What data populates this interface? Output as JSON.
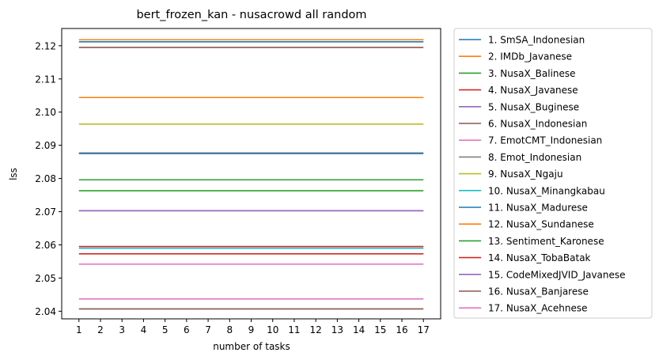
{
  "chart_data": {
    "type": "line",
    "title": "bert_frozen_kan - nusacrowd all random",
    "xlabel": "number of tasks",
    "ylabel": "lss",
    "x": [
      1,
      2,
      3,
      4,
      5,
      6,
      7,
      8,
      9,
      10,
      11,
      12,
      13,
      14,
      15,
      16,
      17
    ],
    "xlim": [
      0.2,
      17.8
    ],
    "ylim": [
      2.0377,
      2.1252
    ],
    "yticks": [
      2.04,
      2.05,
      2.06,
      2.07,
      2.08,
      2.09,
      2.1,
      2.11,
      2.12
    ],
    "ytick_labels": [
      "2.04",
      "2.05",
      "2.06",
      "2.07",
      "2.08",
      "2.09",
      "2.10",
      "2.11",
      "2.12"
    ],
    "xtick_labels": [
      "1",
      "2",
      "3",
      "4",
      "5",
      "6",
      "7",
      "8",
      "9",
      "10",
      "11",
      "12",
      "13",
      "14",
      "15",
      "16",
      "17"
    ],
    "grid": false,
    "legend_position": "outside-right",
    "series": [
      {
        "name": "1. SmSA_Indonesian",
        "color": "#1f77b4",
        "value": 2.1212
      },
      {
        "name": "2. IMDb_Javanese",
        "color": "#ff7f0e",
        "value": 2.1218
      },
      {
        "name": "3. NusaX_Balinese",
        "color": "#2ca02c",
        "value": 2.0796
      },
      {
        "name": "4. NusaX_Javanese",
        "color": "#d62728",
        "value": 2.0595
      },
      {
        "name": "5. NusaX_Buginese",
        "color": "#9467bd",
        "value": 2.0703
      },
      {
        "name": "6. NusaX_Indonesian",
        "color": "#8c564b",
        "value": 2.1195
      },
      {
        "name": "7. EmotCMT_Indonesian",
        "color": "#e377c2",
        "value": 2.0437
      },
      {
        "name": "8. Emot_Indonesian",
        "color": "#7f7f7f",
        "value": 2.0877
      },
      {
        "name": "9. NusaX_Ngaju",
        "color": "#bcbd22",
        "value": 2.0964
      },
      {
        "name": "10. NusaX_Minangkabau",
        "color": "#17becf",
        "value": 2.059
      },
      {
        "name": "11. NusaX_Madurese",
        "color": "#1f77b4",
        "value": 2.0875
      },
      {
        "name": "12. NusaX_Sundanese",
        "color": "#ff7f0e",
        "value": 2.1044
      },
      {
        "name": "13. Sentiment_Karonese",
        "color": "#2ca02c",
        "value": 2.0763
      },
      {
        "name": "14. NusaX_TobaBatak",
        "color": "#d62728",
        "value": 2.0573
      },
      {
        "name": "15. CodeMixedJVID_Javanese",
        "color": "#9467bd",
        "value": 2.0703
      },
      {
        "name": "16. NusaX_Banjarese",
        "color": "#8c564b",
        "value": 2.0407
      },
      {
        "name": "17. NusaX_Acehnese",
        "color": "#e377c2",
        "value": 2.0542
      }
    ]
  }
}
